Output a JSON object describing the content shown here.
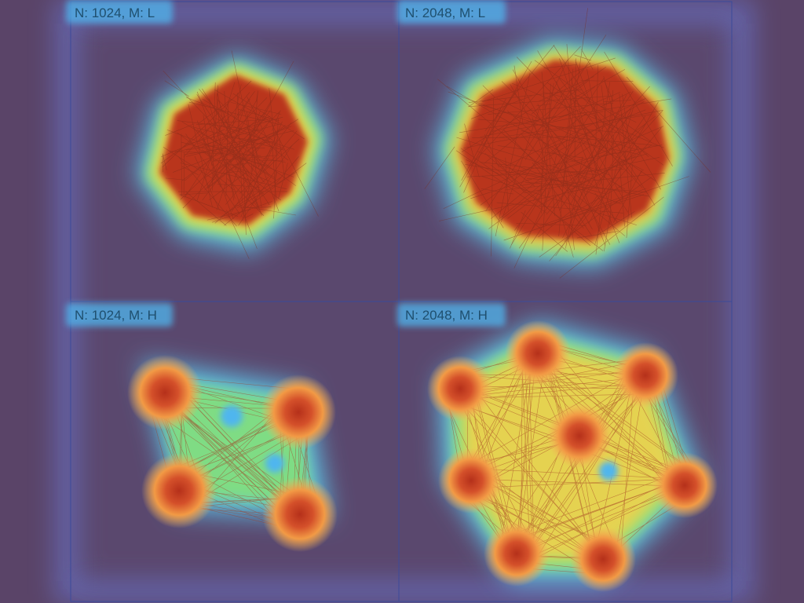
{
  "colors": {
    "background": "#5a4468",
    "panel_border": "#3b4a9a",
    "edge_stroke": "#7a2a1a",
    "label_text": "#1f4f6e"
  },
  "panels": [
    {
      "id": "n1024-ml",
      "label": "N: 1024, M: L",
      "layout": "single-cluster"
    },
    {
      "id": "n2048-ml",
      "label": "N: 2048, M: L",
      "layout": "single-cluster"
    },
    {
      "id": "n1024-mh",
      "label": "N: 1024, M: H",
      "layout": "four-clusters"
    },
    {
      "id": "n2048-mh",
      "label": "N: 2048, M: H",
      "layout": "seven-clusters"
    }
  ]
}
